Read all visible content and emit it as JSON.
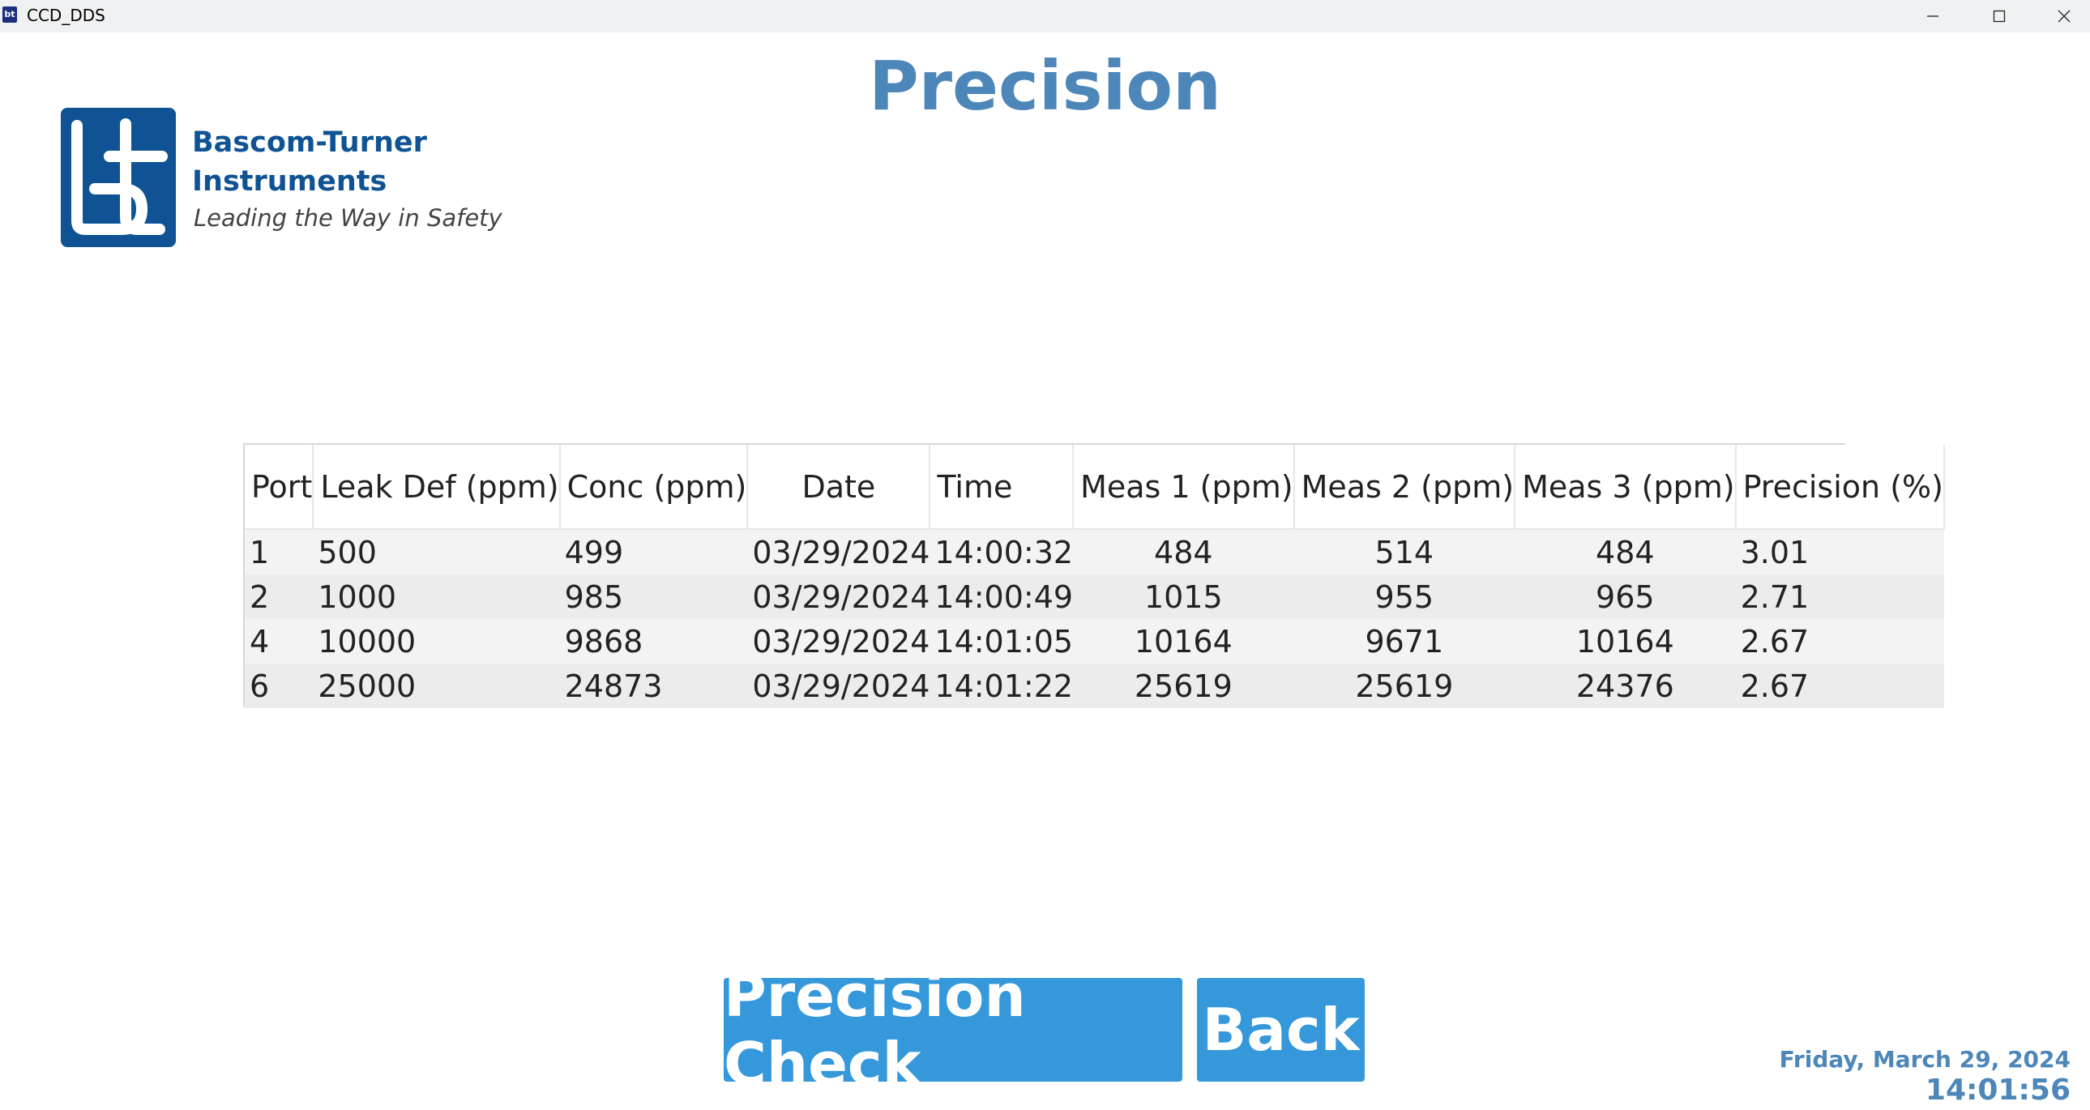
{
  "window": {
    "title": "CCD_DDS",
    "controls": {
      "minimize_icon": "minimize-icon",
      "maximize_icon": "maximize-icon",
      "close_icon": "close-icon"
    }
  },
  "page": {
    "title": "Precision"
  },
  "brand": {
    "name": "Bascom-Turner\nInstruments",
    "tagline": "Leading the Way in Safety",
    "color": "#0f5394"
  },
  "table": {
    "headers": [
      "Port",
      "Leak Def (ppm)",
      "Conc (ppm)",
      "Date",
      "Time",
      "Meas 1 (ppm)",
      "Meas 2 (ppm)",
      "Meas 3 (ppm)",
      "Precision (%)"
    ],
    "rows": [
      [
        "1",
        "500",
        "499",
        "03/29/2024",
        "14:00:32",
        "484",
        "514",
        "484",
        "3.01"
      ],
      [
        "2",
        "1000",
        "985",
        "03/29/2024",
        "14:00:49",
        "1015",
        "955",
        "965",
        "2.71"
      ],
      [
        "4",
        "10000",
        "9868",
        "03/29/2024",
        "14:01:05",
        "10164",
        "9671",
        "10164",
        "2.67"
      ],
      [
        "6",
        "25000",
        "24873",
        "03/29/2024",
        "14:01:22",
        "25619",
        "25619",
        "24376",
        "2.67"
      ]
    ]
  },
  "buttons": {
    "precision_check": "Precision Check",
    "back": "Back",
    "color": "#3498db"
  },
  "status": {
    "date": "Friday, March 29, 2024",
    "time": "14:01:56",
    "accent_color": "#4d86b8"
  }
}
